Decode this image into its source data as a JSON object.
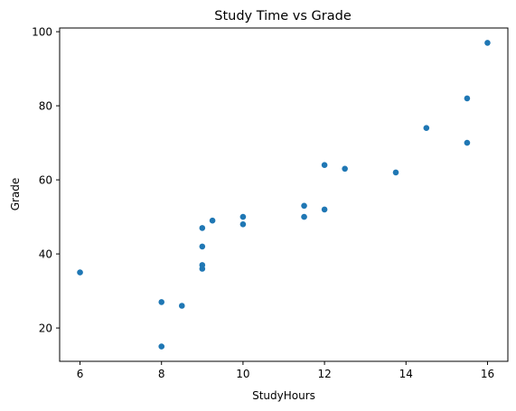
{
  "chart_data": {
    "type": "scatter",
    "title": "Study Time vs Grade",
    "xlabel": "StudyHours",
    "ylabel": "Grade",
    "xlim": [
      5.5,
      16.5
    ],
    "ylim": [
      11,
      101
    ],
    "xticks": [
      6,
      8,
      10,
      12,
      14,
      16
    ],
    "yticks": [
      20,
      40,
      60,
      80,
      100
    ],
    "grid": false,
    "legend": "none",
    "marker_color": "#1f77b4",
    "points": [
      {
        "x": 6,
        "y": 35
      },
      {
        "x": 8,
        "y": 27
      },
      {
        "x": 8,
        "y": 15
      },
      {
        "x": 8.5,
        "y": 26
      },
      {
        "x": 9,
        "y": 47
      },
      {
        "x": 9,
        "y": 42
      },
      {
        "x": 9,
        "y": 37
      },
      {
        "x": 9,
        "y": 36
      },
      {
        "x": 9.25,
        "y": 49
      },
      {
        "x": 10,
        "y": 50
      },
      {
        "x": 10,
        "y": 48
      },
      {
        "x": 11.5,
        "y": 53
      },
      {
        "x": 11.5,
        "y": 50
      },
      {
        "x": 12,
        "y": 64
      },
      {
        "x": 12,
        "y": 52
      },
      {
        "x": 12.5,
        "y": 63
      },
      {
        "x": 13.75,
        "y": 62
      },
      {
        "x": 14.5,
        "y": 74
      },
      {
        "x": 15.5,
        "y": 82
      },
      {
        "x": 15.5,
        "y": 70
      },
      {
        "x": 16,
        "y": 97
      }
    ]
  }
}
